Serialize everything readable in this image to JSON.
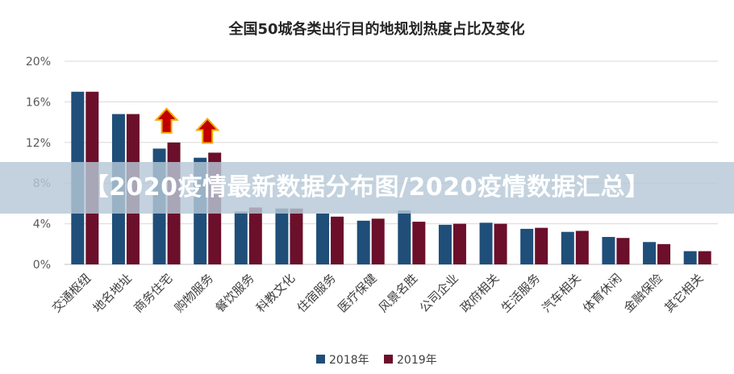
{
  "banner": {
    "text": "【2020疫情最新数据分布图/2020疫情数据汇总】"
  },
  "chart_data": {
    "type": "bar",
    "title": "全国50城各类出行目的地规划热度占比及变化",
    "xlabel": "",
    "ylabel": "",
    "ylim": [
      0,
      20
    ],
    "yticks": [
      "0%",
      "4%",
      "8%",
      "12%",
      "16%",
      "20%"
    ],
    "grid": true,
    "legend_position": "bottom",
    "categories": [
      "交通枢纽",
      "地名地址",
      "商务住宅",
      "购物服务",
      "餐饮服务",
      "科教文化",
      "住宿服务",
      "医疗保健",
      "风景名胜",
      "公司企业",
      "政府相关",
      "生活服务",
      "汽车相关",
      "体育休闲",
      "金融保险",
      "其它相关"
    ],
    "series": [
      {
        "name": "2018年",
        "color": "#1f4e79",
        "values": [
          17.0,
          14.8,
          11.4,
          10.5,
          5.2,
          5.5,
          5.0,
          4.3,
          5.3,
          3.9,
          4.1,
          3.5,
          3.2,
          2.7,
          2.2,
          1.3
        ]
      },
      {
        "name": "2019年",
        "color": "#6b0f2b",
        "values": [
          17.0,
          14.8,
          12.0,
          11.0,
          5.6,
          5.5,
          4.7,
          4.5,
          4.2,
          4.0,
          4.0,
          3.6,
          3.3,
          2.6,
          2.0,
          1.3
        ]
      }
    ],
    "annotations": [
      {
        "type": "up-arrow",
        "category": "商务住宅",
        "color": "#c00000"
      },
      {
        "type": "up-arrow",
        "category": "购物服务",
        "color": "#c00000"
      }
    ]
  }
}
